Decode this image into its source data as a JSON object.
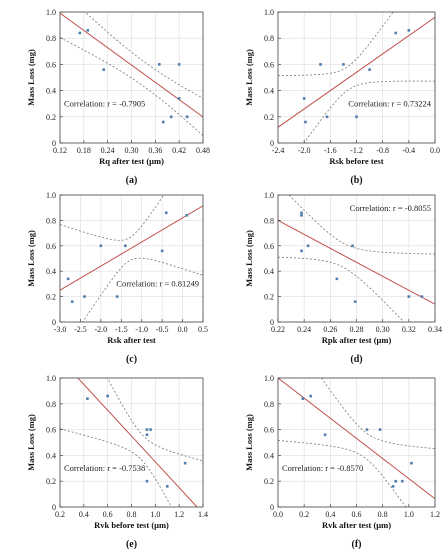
{
  "colors": {
    "fit": "#c0504d",
    "ci": "#777777",
    "point": "#4f7fb0",
    "grid": "#dddddd",
    "frame": "#444444"
  },
  "chart_data": [
    {
      "type": "scatter",
      "panel_label": "(a)",
      "xlabel": "Rq after test (μm)",
      "ylabel": "Mass Loss (mg)",
      "xlim": [
        0.12,
        0.48
      ],
      "ylim": [
        0,
        1
      ],
      "xticks": [
        0.12,
        0.18,
        0.24,
        0.3,
        0.36,
        0.42,
        0.48
      ],
      "xtick_labels": [
        "0.12",
        "0.18",
        "0.24",
        "0.30",
        "0.36",
        "0.42",
        "0.48"
      ],
      "yticks": [
        0,
        0.2,
        0.4,
        0.6,
        0.8,
        1.0
      ],
      "ytick_labels": [
        "0",
        "0.2",
        "0.4",
        "0.6",
        "0.8",
        "1.0"
      ],
      "grid": true,
      "correlation_text": "Correlation: r = -0.7905",
      "correlation_pos": "bottom-left",
      "points": [
        [
          0.17,
          0.84
        ],
        [
          0.19,
          0.86
        ],
        [
          0.23,
          0.56
        ],
        [
          0.37,
          0.6
        ],
        [
          0.38,
          0.16
        ],
        [
          0.4,
          0.2
        ],
        [
          0.42,
          0.6
        ],
        [
          0.42,
          0.34
        ],
        [
          0.44,
          0.2
        ]
      ],
      "fit": {
        "slope": -2.2,
        "intercept": 1.255
      },
      "ci": {
        "xmean": 0.336,
        "base": 0.095,
        "scale": 0.55
      }
    },
    {
      "type": "scatter",
      "panel_label": "(b)",
      "xlabel": "Rsk before test",
      "ylabel": "Mass Loss (mg)",
      "xlim": [
        -2.4,
        0
      ],
      "ylim": [
        0,
        1
      ],
      "xticks": [
        -2.4,
        -2.0,
        -1.6,
        -1.2,
        -0.8,
        -0.4,
        0.0
      ],
      "xtick_labels": [
        "-2.4",
        "-2.0",
        "-1.6",
        "-1.2",
        "-0.8",
        "-0.4",
        "0.0"
      ],
      "yticks": [
        0,
        0.2,
        0.4,
        0.6,
        0.8,
        1.0
      ],
      "ytick_labels": [
        "0",
        "0.2",
        "0.4",
        "0.6",
        "0.8",
        "1.0"
      ],
      "grid": true,
      "correlation_text": "Correlation: r = 0.73224",
      "correlation_pos": "bottom-right",
      "points": [
        [
          -2.0,
          0.34
        ],
        [
          -1.98,
          0.16
        ],
        [
          -1.75,
          0.6
        ],
        [
          -1.65,
          0.2
        ],
        [
          -1.4,
          0.6
        ],
        [
          -1.2,
          0.2
        ],
        [
          -1.0,
          0.56
        ],
        [
          -0.6,
          0.84
        ],
        [
          -0.4,
          0.86
        ]
      ],
      "fit": {
        "slope": 0.35,
        "intercept": 0.96
      },
      "ci": {
        "xmean": -1.33,
        "base": 0.09,
        "scale": 0.13
      }
    },
    {
      "type": "scatter",
      "panel_label": "(c)",
      "xlabel": "Rsk after test",
      "ylabel": "Mass Loss (mg)",
      "xlim": [
        -3.0,
        0.5
      ],
      "ylim": [
        0,
        1
      ],
      "xticks": [
        -3.0,
        -2.5,
        -2.0,
        -1.5,
        -1.0,
        -0.5,
        0.0,
        0.5
      ],
      "xtick_labels": [
        "-3.0",
        "-2.5",
        "-2.0",
        "-1.5",
        "-1.0",
        "-0.5",
        "0.0",
        "0.5"
      ],
      "yticks": [
        0,
        0.2,
        0.4,
        0.6,
        0.8,
        1.0
      ],
      "ytick_labels": [
        "0",
        "0.2",
        "0.4",
        "0.6",
        "0.8",
        "1.0"
      ],
      "grid": true,
      "correlation_text": "Correlation: r = 0.81249",
      "correlation_pos": "bottom-right",
      "points": [
        [
          -2.8,
          0.34
        ],
        [
          -2.7,
          0.16
        ],
        [
          -2.4,
          0.2
        ],
        [
          -2.0,
          0.6
        ],
        [
          -1.6,
          0.2
        ],
        [
          -1.4,
          0.6
        ],
        [
          -0.5,
          0.56
        ],
        [
          -0.4,
          0.86
        ],
        [
          0.1,
          0.84
        ]
      ],
      "fit": {
        "slope": 0.19,
        "intercept": 0.82
      },
      "ci": {
        "xmean": -1.3,
        "base": 0.09,
        "scale": 0.09
      }
    },
    {
      "type": "scatter",
      "panel_label": "(d)",
      "xlabel": "Rpk after test (μm)",
      "ylabel": "Mass Loss (mg)",
      "xlim": [
        0.22,
        0.34
      ],
      "ylim": [
        0,
        1
      ],
      "xticks": [
        0.22,
        0.24,
        0.26,
        0.28,
        0.3,
        0.32,
        0.34
      ],
      "xtick_labels": [
        "0.22",
        "0.24",
        "0.26",
        "0.28",
        "0.30",
        "0.32",
        "0.34"
      ],
      "yticks": [
        0,
        0.2,
        0.4,
        0.6,
        0.8,
        1.0
      ],
      "ytick_labels": [
        "0",
        "0.2",
        "0.4",
        "0.6",
        "0.8",
        "1.0"
      ],
      "grid": true,
      "correlation_text": "Correlation: r = -0.8055",
      "correlation_pos": "top-right",
      "points": [
        [
          0.238,
          0.86
        ],
        [
          0.238,
          0.84
        ],
        [
          0.238,
          0.56
        ],
        [
          0.243,
          0.6
        ],
        [
          0.265,
          0.34
        ],
        [
          0.277,
          0.6
        ],
        [
          0.279,
          0.16
        ],
        [
          0.32,
          0.2
        ],
        [
          0.33,
          0.2
        ]
      ],
      "fit": {
        "slope": -5.5,
        "intercept": 2.01
      },
      "ci": {
        "xmean": 0.27,
        "base": 0.095,
        "scale": 30
      }
    },
    {
      "type": "scatter",
      "panel_label": "(e)",
      "xlabel": "Rvk before test (μm)",
      "ylabel": "Mass Loss (mg)",
      "xlim": [
        0.2,
        1.4
      ],
      "ylim": [
        0,
        1
      ],
      "xticks": [
        0.2,
        0.4,
        0.6,
        0.8,
        1.0,
        1.2,
        1.4
      ],
      "xtick_labels": [
        "0.2",
        "0.4",
        "0.6",
        "0.8",
        "1.0",
        "1.2",
        "1.4"
      ],
      "yticks": [
        0,
        0.2,
        0.4,
        0.6,
        0.8,
        1.0
      ],
      "ytick_labels": [
        "0",
        "0.2",
        "0.4",
        "0.6",
        "0.8",
        "1.0"
      ],
      "grid": true,
      "correlation_text": "Correlation: r = -0.7538",
      "correlation_pos": "bottom-left",
      "points": [
        [
          0.43,
          0.84
        ],
        [
          0.6,
          0.86
        ],
        [
          0.93,
          0.6
        ],
        [
          0.93,
          0.56
        ],
        [
          0.96,
          0.6
        ],
        [
          0.93,
          0.2
        ],
        [
          1.1,
          0.16
        ],
        [
          1.25,
          0.34
        ]
      ],
      "fit": {
        "slope": -1.0,
        "intercept": 1.35
      },
      "ci": {
        "xmean": 0.89,
        "base": 0.1,
        "scale": 0.6
      }
    },
    {
      "type": "scatter",
      "panel_label": "(f)",
      "xlabel": "Rvk after test (μm)",
      "ylabel": "Mass Loss (mg)",
      "xlim": [
        0,
        1.2
      ],
      "ylim": [
        0,
        1
      ],
      "xticks": [
        0.0,
        0.2,
        0.4,
        0.6,
        0.8,
        1.0,
        1.2
      ],
      "xtick_labels": [
        "0.0",
        "0.2",
        "0.4",
        "0.6",
        "0.8",
        "1.0",
        "1.2"
      ],
      "yticks": [
        0,
        0.2,
        0.4,
        0.6,
        0.8,
        1.0
      ],
      "ytick_labels": [
        "0",
        "0.2",
        "0.4",
        "0.6",
        "0.8",
        "1.0"
      ],
      "grid": true,
      "correlation_text": "Correlation: r = -0.8570",
      "correlation_pos": "bottom-left",
      "points": [
        [
          0.19,
          0.84
        ],
        [
          0.25,
          0.86
        ],
        [
          0.36,
          0.56
        ],
        [
          0.68,
          0.6
        ],
        [
          0.78,
          0.6
        ],
        [
          0.88,
          0.16
        ],
        [
          0.9,
          0.2
        ],
        [
          0.95,
          0.2
        ],
        [
          1.02,
          0.34
        ]
      ],
      "fit": {
        "slope": -0.78,
        "intercept": 1.0
      },
      "ci": {
        "xmean": 0.67,
        "base": 0.1,
        "scale": 0.5
      }
    }
  ]
}
